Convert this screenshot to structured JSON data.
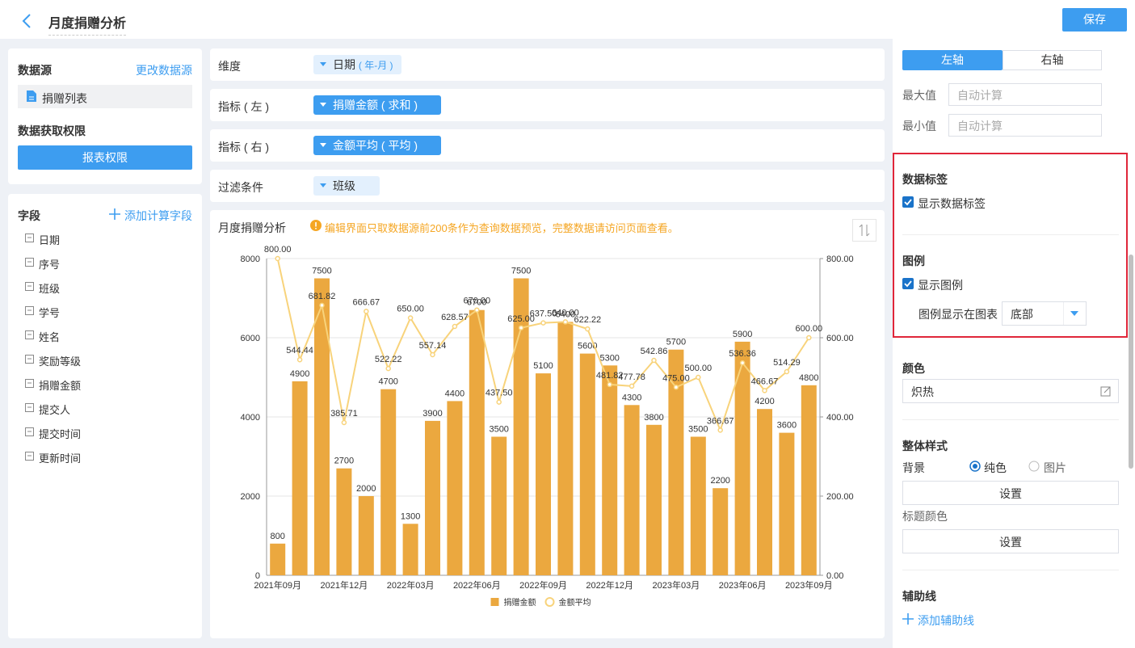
{
  "header": {
    "title": "月度捐赠分析",
    "save": "保存"
  },
  "data_source": {
    "title": "数据源",
    "change": "更改数据源",
    "table": "捐赠列表",
    "permission_title": "数据获取权限",
    "permission_button": "报表权限"
  },
  "fields": {
    "title": "字段",
    "add": "添加计算字段",
    "items": [
      "日期",
      "序号",
      "班级",
      "学号",
      "姓名",
      "奖励等级",
      "捐赠金额",
      "提交人",
      "提交时间",
      "更新时间"
    ]
  },
  "config": {
    "dimension_label": "维度",
    "dimension": "日期",
    "dimension_note": "( 年-月 )",
    "left_label": "指标 ( 左 )",
    "left": "捐赠金额 ( 求和 )",
    "right_label": "指标 ( 右 )",
    "right": "金额平均 ( 平均 )",
    "filter_label": "过滤条件",
    "filter": "班级"
  },
  "notice": "编辑界面只取数据源前200条作为查询数据预览，完整数据请访问页面查看。",
  "chart_data": {
    "type": "bar",
    "title": "月度捐赠分析",
    "categories": [
      "2021年09月",
      null,
      null,
      "2021年12月",
      null,
      null,
      "2022年03月",
      null,
      null,
      "2022年06月",
      null,
      null,
      "2022年09月",
      null,
      null,
      "2022年12月",
      null,
      null,
      "2023年03月",
      null,
      null,
      "2023年06月",
      null,
      null,
      "2023年09月"
    ],
    "series": [
      {
        "name": "捐赠金额",
        "type": "bar",
        "color": "#eba83f",
        "values": [
          800,
          4900,
          7500,
          2700,
          2000,
          4700,
          1300,
          3900,
          4400,
          6700,
          3500,
          7500,
          5100,
          6400,
          5600,
          5300,
          4300,
          3800,
          5700,
          3500,
          2200,
          5900,
          4200,
          3600,
          4800
        ]
      },
      {
        "name": "金额平均",
        "type": "line",
        "axis": "y2",
        "color": "#f8d37b",
        "values": [
          800,
          544.44,
          681.82,
          385.71,
          666.67,
          522.22,
          650,
          557.14,
          628.57,
          670,
          437.5,
          625,
          637.5,
          640,
          622.22,
          481.82,
          477.78,
          542.86,
          475,
          500,
          366.67,
          536.36,
          466.67,
          514.29,
          600
        ],
        "value_labels": [
          "800.00",
          "544.44",
          "681.82",
          "385.71",
          "666.67",
          "522.22",
          "650.00",
          "557.14",
          "628.57",
          "670.00",
          "437.50",
          "625.00",
          "637.50",
          "640.00",
          "622.22",
          "481.82",
          "477.78",
          "542.86",
          "475.00",
          "500.00",
          "366.67",
          "536.36",
          "466.67",
          "514.29",
          "600.00"
        ]
      }
    ],
    "ylim": [
      0,
      8000
    ],
    "yticks": [
      0,
      2000,
      4000,
      6000,
      8000
    ],
    "y2lim": [
      0,
      800
    ],
    "y2ticks": [
      {
        "value": 0,
        "label": "0.00"
      },
      {
        "value": 200,
        "label": "200.00"
      },
      {
        "value": 400,
        "label": "400.00"
      },
      {
        "value": 600,
        "label": "600.00"
      },
      {
        "value": 800,
        "label": "800.00"
      }
    ],
    "grid": true,
    "legend": "bottom"
  },
  "axis_settings": {
    "tabs": [
      "左轴",
      "右轴"
    ],
    "max_label": "最大值",
    "min_label": "最小值",
    "placeholder": "自动计算"
  },
  "data_label": {
    "title": "数据标签",
    "checkbox": "显示数据标签"
  },
  "legend_settings": {
    "title": "图例",
    "checkbox": "显示图例",
    "position_label": "图例显示在图表",
    "position": "底部"
  },
  "color": {
    "title": "颜色",
    "value": "炽热"
  },
  "style": {
    "title": "整体样式",
    "background": "背景",
    "options": [
      "纯色",
      "图片"
    ],
    "button": "设置",
    "title_color": "标题颜色"
  },
  "guide": {
    "title": "辅助线",
    "add": "添加辅助线"
  }
}
